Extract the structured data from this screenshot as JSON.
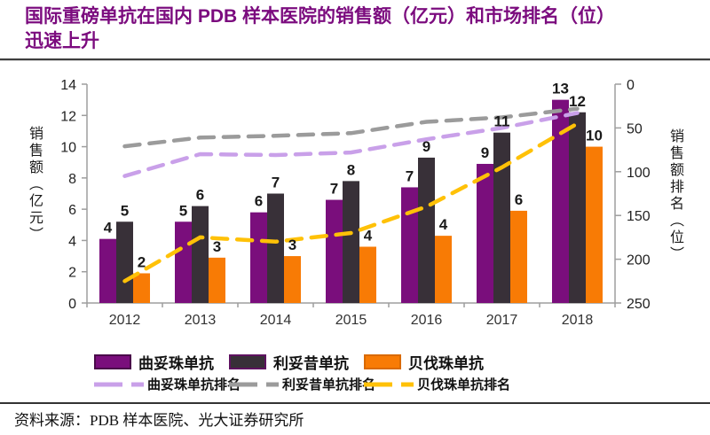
{
  "title": {
    "line1": "国际重磅单抗在国内 PDB 样本医院的销售额（亿元）和市场排名（位）",
    "line2": "迅速上升",
    "color": "#7B0B7E"
  },
  "source": {
    "text": "资料来源：PDB 样本医院、光大证券研究所"
  },
  "chart_data": {
    "type": "bar+line-combo",
    "categories": [
      "2012",
      "2013",
      "2014",
      "2015",
      "2016",
      "2017",
      "2018"
    ],
    "bar_series": [
      {
        "name": "曲妥珠单抗",
        "color": "#7A0E7C",
        "border": "#4a0a4a",
        "values": [
          4.1,
          5.2,
          5.8,
          6.6,
          7.4,
          8.9,
          13.0
        ],
        "labels": [
          "4",
          "5",
          "6",
          "7",
          "7",
          "9",
          "13"
        ]
      },
      {
        "name": "利妥昔单抗",
        "color": "#383038",
        "border": "#5e1260",
        "values": [
          5.2,
          6.2,
          7.0,
          7.8,
          9.3,
          10.9,
          12.2
        ],
        "labels": [
          "5",
          "6",
          "7",
          "8",
          "9",
          "11",
          "12"
        ]
      },
      {
        "name": "贝伐珠单抗",
        "color": "#F87B05",
        "border": "#d96a00",
        "values": [
          1.9,
          2.9,
          3.0,
          3.6,
          4.3,
          5.9,
          10.0
        ],
        "labels": [
          "2",
          "3",
          "3",
          "4",
          "4",
          "6",
          "10"
        ]
      }
    ],
    "line_series": [
      {
        "name": "曲妥珠单抗排名",
        "color": "#C9A0E9",
        "values": [
          105,
          80,
          81,
          78,
          63,
          50,
          33
        ]
      },
      {
        "name": "利妥昔单抗排名",
        "color": "#9B9B9B",
        "values": [
          71,
          61,
          59,
          56,
          43,
          38,
          28
        ]
      },
      {
        "name": "贝伐珠单抗排名",
        "color": "#FFC107",
        "values": [
          225,
          175,
          180,
          170,
          140,
          95,
          45
        ]
      }
    ],
    "left_axis": {
      "title": "销售额（亿元）",
      "ticks": [
        0,
        2,
        4,
        6,
        8,
        10,
        12,
        14
      ],
      "range": [
        0,
        14
      ]
    },
    "right_axis": {
      "title": "销售额排名（位）",
      "ticks": [
        0,
        50,
        100,
        150,
        200,
        250
      ],
      "range": [
        0,
        250
      ],
      "inverted": true
    },
    "grid": false,
    "legend_position": "bottom",
    "axis_color": "#9e9e9e",
    "label_color": "#1a1a1a",
    "tick_label_color": "#222"
  }
}
